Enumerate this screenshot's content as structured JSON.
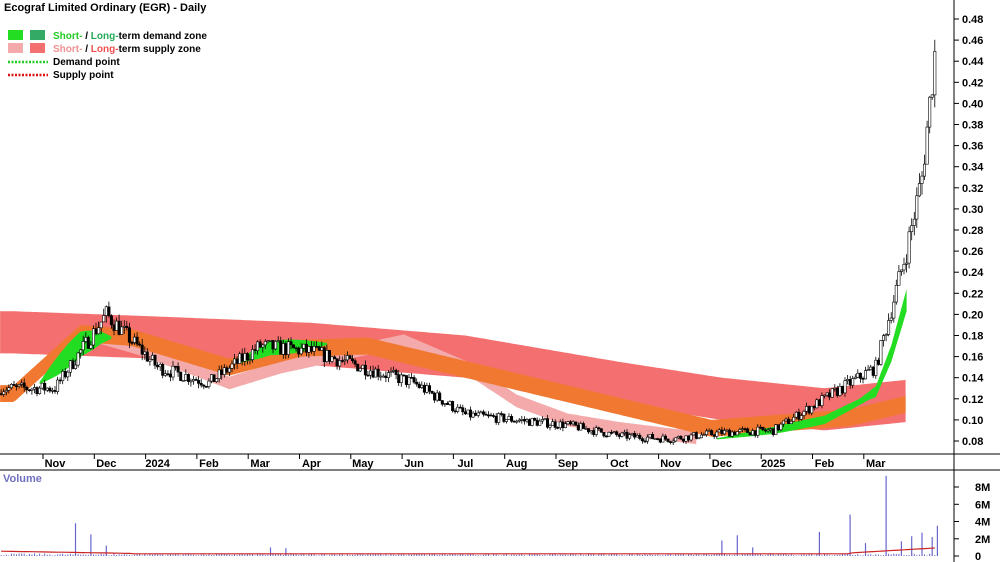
{
  "title": "Ecograf Limited Ordinary (EGR) - Daily",
  "legend": {
    "demand_zone": {
      "short": "Short-",
      "sep": " / ",
      "long": "Long-",
      "rest": "term demand zone"
    },
    "supply_zone": {
      "short": "Short-",
      "sep": " / ",
      "long": "Long-",
      "rest": "term supply zone"
    },
    "demand_point": "Demand point",
    "supply_point": "Supply point"
  },
  "colors": {
    "short_demand": "#22dd22",
    "long_demand": "#33aa66",
    "short_supply": "#f4aaaa",
    "long_supply": "#f47070",
    "orange_band": "#f07830",
    "demand_point": "#22cc22",
    "supply_point": "#dd1111",
    "volume": "#6666cc",
    "volume_ma": "#cc2222",
    "axis": "#000000"
  },
  "chart_data": {
    "type": "candlestick",
    "title": "Ecograf Limited Ordinary (EGR) - Daily",
    "x_tick_labels": [
      "Nov",
      "Dec",
      "2024",
      "Feb",
      "Mar",
      "Apr",
      "May",
      "Jun",
      "Jul",
      "Aug",
      "Sep",
      "Oct",
      "Nov",
      "Dec",
      "2025",
      "Feb",
      "Mar"
    ],
    "y_ticks": [
      0.08,
      0.1,
      0.12,
      0.14,
      0.16,
      0.18,
      0.2,
      0.22,
      0.24,
      0.26,
      0.28,
      0.3,
      0.32,
      0.34,
      0.36,
      0.38,
      0.4,
      0.42,
      0.44,
      0.46,
      0.48
    ],
    "ylim": [
      0.064,
      0.492
    ],
    "grid": false,
    "price_anchors": {
      "months": [
        0,
        1,
        2,
        3,
        4,
        5,
        6,
        7,
        8,
        9,
        10,
        11,
        12,
        13,
        14,
        15,
        16,
        16.6,
        16.9,
        17.2
      ],
      "values": [
        0.13,
        0.2,
        0.15,
        0.135,
        0.17,
        0.165,
        0.15,
        0.135,
        0.105,
        0.1,
        0.095,
        0.085,
        0.082,
        0.088,
        0.09,
        0.12,
        0.15,
        0.26,
        0.33,
        0.47
      ]
    },
    "zones": {
      "long_supply_center": {
        "months": [
          -0.8,
          2,
          5,
          8,
          11,
          13,
          15,
          16.6
        ],
        "values": [
          0.183,
          0.178,
          0.172,
          0.16,
          0.135,
          0.12,
          0.11,
          0.118
        ]
      },
      "long_supply_halfwidth": 0.02,
      "short_supply": {
        "months": [
          0.6,
          1.6,
          2.6,
          3.4,
          4.4,
          6.8,
          8,
          9,
          10,
          11,
          12.5
        ],
        "values": [
          0.182,
          0.168,
          0.15,
          0.135,
          0.15,
          0.175,
          0.15,
          0.118,
          0.1,
          0.092,
          0.083
        ],
        "halfwidth": 0.006
      },
      "orange_long_demand": {
        "months": [
          -0.8,
          0.5,
          1.5,
          3.4,
          4.8,
          6.1,
          12.8,
          15.5,
          16.6
        ],
        "values": [
          0.125,
          0.182,
          0.178,
          0.15,
          0.168,
          0.17,
          0.092,
          0.102,
          0.115
        ],
        "halfwidth": 0.008
      },
      "short_demand": {
        "months": [
          -0.3,
          0.5,
          0.9,
          1.3,
          3.4,
          4.2,
          5.3,
          12.9,
          14,
          15,
          16,
          16.3,
          16.6
        ],
        "values": [
          0.135,
          0.172,
          0.178,
          0.178,
          0.152,
          0.168,
          0.172,
          0.082,
          0.09,
          0.1,
          0.125,
          0.16,
          0.21
        ]
      }
    },
    "volume": {
      "ylabel": "Volume",
      "y_ticks": [
        0,
        2,
        4,
        6,
        8
      ],
      "y_tick_labels": [
        "0",
        "2M",
        "4M",
        "6M",
        "8M"
      ],
      "ylim": [
        0,
        9
      ],
      "spikes_millions": [
        [
          0.4,
          3.8
        ],
        [
          0.7,
          2.5
        ],
        [
          1.0,
          1.2
        ],
        [
          4.2,
          1.0
        ],
        [
          4.5,
          0.9
        ],
        [
          13.0,
          1.8
        ],
        [
          13.3,
          2.4
        ],
        [
          13.6,
          1.0
        ],
        [
          14.9,
          2.8
        ],
        [
          15.5,
          4.8
        ],
        [
          15.8,
          1.5
        ],
        [
          16.2,
          9.3
        ],
        [
          16.5,
          1.7
        ],
        [
          16.7,
          2.3
        ],
        [
          16.9,
          2.7
        ],
        [
          17.1,
          2.2
        ],
        [
          17.2,
          3.5
        ]
      ]
    }
  }
}
